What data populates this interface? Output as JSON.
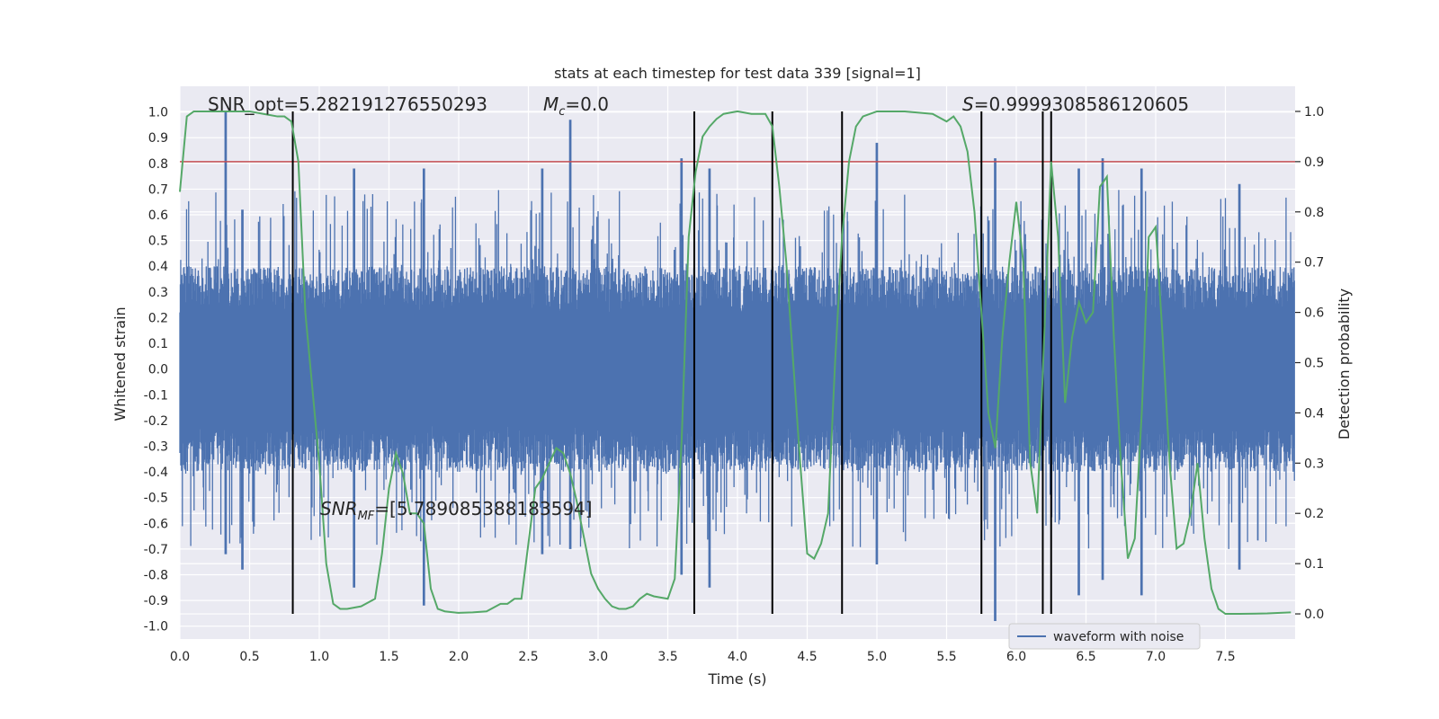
{
  "chart_data": {
    "type": "line",
    "title": "stats at each timestep for test data 339 [signal=1]",
    "xlabel": "Time (s)",
    "ylabel_left": "Whitened strain",
    "ylabel_right": "Detection probability",
    "xlim": [
      0.0,
      8.0
    ],
    "ylim_left": [
      -1.05,
      1.1
    ],
    "ylim_right": [
      -0.05,
      1.05
    ],
    "x_ticks": [
      0.0,
      0.5,
      1.0,
      1.5,
      2.0,
      2.5,
      3.0,
      3.5,
      4.0,
      4.5,
      5.0,
      5.5,
      6.0,
      6.5,
      7.0,
      7.5
    ],
    "x_tick_labels": [
      "0.0",
      "0.5",
      "1.0",
      "1.5",
      "2.0",
      "2.5",
      "3.0",
      "3.5",
      "4.0",
      "4.5",
      "5.0",
      "5.5",
      "6.0",
      "6.5",
      "7.0",
      "7.5"
    ],
    "y_ticks_left": [
      1.0,
      0.9,
      0.8,
      0.7,
      0.6,
      0.5,
      0.4,
      0.3,
      0.2,
      0.1,
      0.0,
      -0.1,
      -0.2,
      -0.3,
      -0.4,
      -0.5,
      -0.6,
      -0.7,
      -0.8,
      -0.9,
      -1.0
    ],
    "y_tick_labels_left": [
      "1.0",
      "0.9",
      "0.8",
      "0.7",
      "0.6",
      "0.5",
      "0.4",
      "0.3",
      "0.2",
      "0.1",
      "0.0",
      "-0.1",
      "-0.2",
      "-0.3",
      "-0.4",
      "-0.5",
      "-0.6",
      "-0.7",
      "-0.8",
      "-0.9",
      "-1.0"
    ],
    "y_ticks_right": [
      0.0,
      0.1,
      0.2,
      0.3,
      0.4,
      0.5,
      0.6,
      0.7,
      0.8,
      0.9,
      1.0
    ],
    "y_tick_labels_right": [
      "0.0",
      "0.1",
      "0.2",
      "0.3",
      "0.4",
      "0.5",
      "0.6",
      "0.7",
      "0.8",
      "0.9",
      "1.0"
    ],
    "grid": true,
    "threshold": 0.9,
    "threshold_color": "#c44e52",
    "waveform": {
      "name": "waveform with noise",
      "color": "#4c72b0",
      "typical_amplitude": 0.4,
      "peaks": [
        {
          "t": 0.33,
          "y": 1.0,
          "neg": -0.72
        },
        {
          "t": 0.45,
          "y": 0.62,
          "neg": -0.78
        },
        {
          "t": 1.25,
          "y": 0.78,
          "neg": -0.85
        },
        {
          "t": 1.75,
          "y": 0.78,
          "neg": -0.92
        },
        {
          "t": 2.6,
          "y": 0.78,
          "neg": -0.72
        },
        {
          "t": 2.8,
          "y": 0.97,
          "neg": -0.7
        },
        {
          "t": 3.6,
          "y": 0.82,
          "neg": -0.8
        },
        {
          "t": 3.8,
          "y": 0.78,
          "neg": -0.85
        },
        {
          "t": 5.0,
          "y": 0.88,
          "neg": -0.76
        },
        {
          "t": 5.85,
          "y": 0.82,
          "neg": -0.98
        },
        {
          "t": 6.45,
          "y": 0.78,
          "neg": -0.88
        },
        {
          "t": 6.62,
          "y": 0.82,
          "neg": -0.82
        },
        {
          "t": 6.9,
          "y": 0.78,
          "neg": -0.88
        },
        {
          "t": 7.6,
          "y": 0.72,
          "neg": -0.78
        }
      ]
    },
    "probability": {
      "color": "#55a868",
      "x": [
        0.0,
        0.05,
        0.1,
        0.2,
        0.3,
        0.4,
        0.5,
        0.6,
        0.7,
        0.75,
        0.8,
        0.85,
        0.9,
        1.0,
        1.05,
        1.1,
        1.15,
        1.2,
        1.3,
        1.4,
        1.45,
        1.5,
        1.55,
        1.6,
        1.65,
        1.7,
        1.75,
        1.8,
        1.85,
        1.9,
        2.0,
        2.1,
        2.2,
        2.3,
        2.35,
        2.4,
        2.45,
        2.55,
        2.6,
        2.7,
        2.75,
        2.8,
        2.85,
        2.9,
        2.95,
        3.0,
        3.05,
        3.1,
        3.15,
        3.2,
        3.25,
        3.3,
        3.35,
        3.4,
        3.5,
        3.55,
        3.6,
        3.65,
        3.7,
        3.75,
        3.8,
        3.85,
        3.9,
        4.0,
        4.1,
        4.2,
        4.25,
        4.3,
        4.35,
        4.4,
        4.45,
        4.5,
        4.55,
        4.6,
        4.65,
        4.7,
        4.75,
        4.8,
        4.85,
        4.9,
        5.0,
        5.2,
        5.4,
        5.5,
        5.55,
        5.6,
        5.65,
        5.7,
        5.75,
        5.8,
        5.85,
        5.9,
        5.95,
        6.0,
        6.05,
        6.1,
        6.15,
        6.2,
        6.25,
        6.3,
        6.35,
        6.4,
        6.45,
        6.5,
        6.55,
        6.6,
        6.65,
        6.7,
        6.75,
        6.8,
        6.85,
        6.9,
        6.95,
        7.0,
        7.05,
        7.1,
        7.15,
        7.2,
        7.25,
        7.3,
        7.35,
        7.4,
        7.45,
        7.5,
        7.6,
        7.8,
        7.97
      ],
      "y": [
        0.84,
        0.99,
        1.0,
        1.0,
        1.0,
        1.0,
        1.0,
        0.995,
        0.99,
        0.99,
        0.98,
        0.9,
        0.6,
        0.3,
        0.1,
        0.02,
        0.01,
        0.01,
        0.015,
        0.03,
        0.12,
        0.25,
        0.32,
        0.28,
        0.2,
        0.2,
        0.18,
        0.05,
        0.01,
        0.005,
        0.002,
        0.003,
        0.005,
        0.02,
        0.02,
        0.03,
        0.03,
        0.25,
        0.27,
        0.33,
        0.32,
        0.28,
        0.22,
        0.15,
        0.08,
        0.05,
        0.03,
        0.015,
        0.01,
        0.01,
        0.015,
        0.03,
        0.04,
        0.035,
        0.03,
        0.07,
        0.35,
        0.75,
        0.88,
        0.95,
        0.97,
        0.985,
        0.995,
        1.0,
        0.995,
        0.995,
        0.97,
        0.85,
        0.7,
        0.5,
        0.3,
        0.12,
        0.11,
        0.14,
        0.2,
        0.5,
        0.75,
        0.9,
        0.97,
        0.99,
        1.0,
        1.0,
        0.995,
        0.98,
        0.99,
        0.97,
        0.92,
        0.8,
        0.6,
        0.4,
        0.33,
        0.55,
        0.7,
        0.82,
        0.7,
        0.3,
        0.2,
        0.55,
        0.9,
        0.75,
        0.42,
        0.55,
        0.62,
        0.58,
        0.6,
        0.85,
        0.87,
        0.55,
        0.3,
        0.11,
        0.15,
        0.4,
        0.75,
        0.77,
        0.55,
        0.3,
        0.13,
        0.14,
        0.2,
        0.3,
        0.15,
        0.05,
        0.01,
        0.0,
        0.0,
        0.001,
        0.003
      ]
    },
    "vlines": [
      0.81,
      3.69,
      4.25,
      4.75,
      5.75,
      6.19,
      6.25
    ],
    "annotations": {
      "snr_opt": "SNR_opt=5.282191276550293",
      "mc_symbol": "M",
      "mc_sub": "c",
      "mc_value": "=0.0",
      "s_symbol": "S",
      "s_value": "=0.9999308586120605",
      "snr_mf_symbol": "SNR",
      "snr_mf_sub": "MF",
      "snr_mf_value": "=[5.789085388183594]"
    },
    "legend": {
      "placement": "lower-right",
      "entries": [
        "waveform with noise"
      ]
    }
  }
}
